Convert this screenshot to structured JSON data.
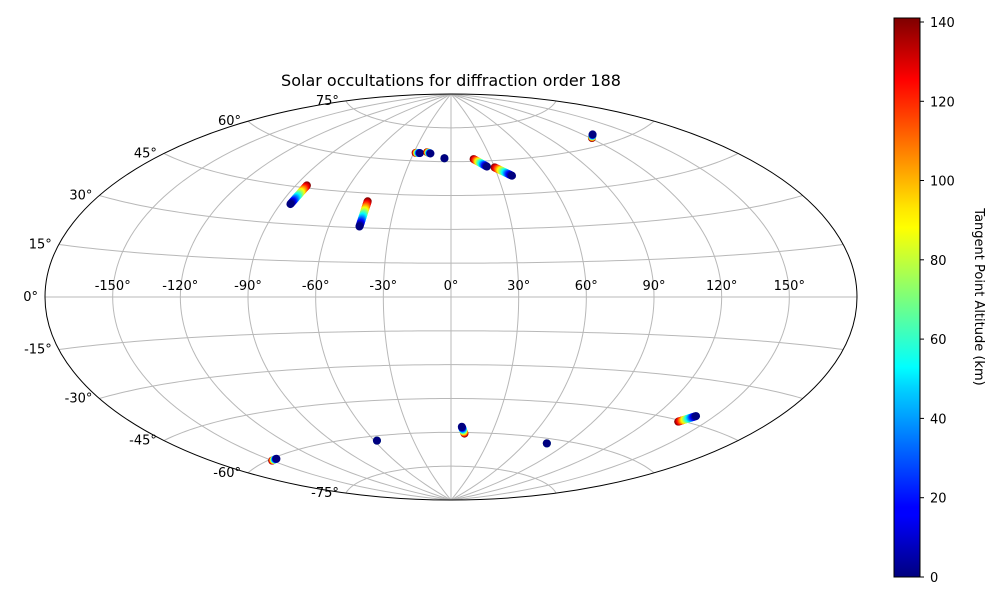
{
  "chart_data": {
    "type": "scatter",
    "projection": "aitoff",
    "title": "Solar occultations for diffraction order 188",
    "longitude_ticks": [
      "-150°",
      "-120°",
      "-90°",
      "-60°",
      "-30°",
      "0°",
      "30°",
      "60°",
      "90°",
      "120°",
      "150°"
    ],
    "longitude_values": [
      -150,
      -120,
      -90,
      -60,
      -30,
      0,
      30,
      60,
      90,
      120,
      150
    ],
    "latitude_ticks": [
      "75°",
      "60°",
      "45°",
      "30°",
      "15°",
      "0°",
      "-15°",
      "-30°",
      "-45°",
      "-60°",
      "-75°"
    ],
    "latitude_values": [
      75,
      60,
      45,
      30,
      15,
      0,
      -15,
      -30,
      -45,
      -60,
      -75
    ],
    "grid": true,
    "colorbar": {
      "label": "Tangent Point Altitude (km)",
      "colormap": "jet",
      "range": [
        0,
        141
      ],
      "ticks": [
        "0",
        "20",
        "40",
        "60",
        "80",
        "100",
        "120",
        "140"
      ],
      "tick_values": [
        0,
        20,
        40,
        60,
        80,
        100,
        120,
        140
      ]
    },
    "series": [
      {
        "lon_start": -84.9,
        "lat_start": 38.0,
        "lon_end": -83.9,
        "lat_end": 46.0
      },
      {
        "lon_start": -45.0,
        "lat_start": 30.5,
        "lon_end": -45.3,
        "lat_end": 41.5
      },
      {
        "lon_start": -25.0,
        "lat_start": 63.5,
        "lon_end": -28.5,
        "lat_end": 63.5
      },
      {
        "lon_start": -16.5,
        "lat_start": 63.5,
        "lon_end": -19.5,
        "lat_end": 64.0
      },
      {
        "lon_start": -5.0,
        "lat_start": 61.5,
        "lon_end": -5.0,
        "lat_end": 61.5
      },
      {
        "lon_start": 25.0,
        "lat_start": 57.5,
        "lon_end": 17.0,
        "lat_end": 61.0
      },
      {
        "lon_start": 39.0,
        "lat_start": 53.0,
        "lon_end": 30.0,
        "lat_end": 57.0
      },
      {
        "lon_start": 126.5,
        "lat_start": 64.0,
        "lon_end": 121.0,
        "lat_end": 63.0
      },
      {
        "lon_start": -145.0,
        "lat_start": -60.5,
        "lon_end": -150.0,
        "lat_end": -60.5
      },
      {
        "lon_start": -58.0,
        "lat_start": -62.0,
        "lon_end": -58.0,
        "lat_end": -62.0
      },
      {
        "lon_start": 7.5,
        "lat_start": -57.5,
        "lon_end": 10.0,
        "lat_end": -60.5
      },
      {
        "lon_start": 76.0,
        "lat_start": -62.0,
        "lon_end": 76.0,
        "lat_end": -62.0
      },
      {
        "lon_start": 141.0,
        "lat_start": -42.5,
        "lon_end": 136.0,
        "lat_end": -45.5
      }
    ]
  }
}
